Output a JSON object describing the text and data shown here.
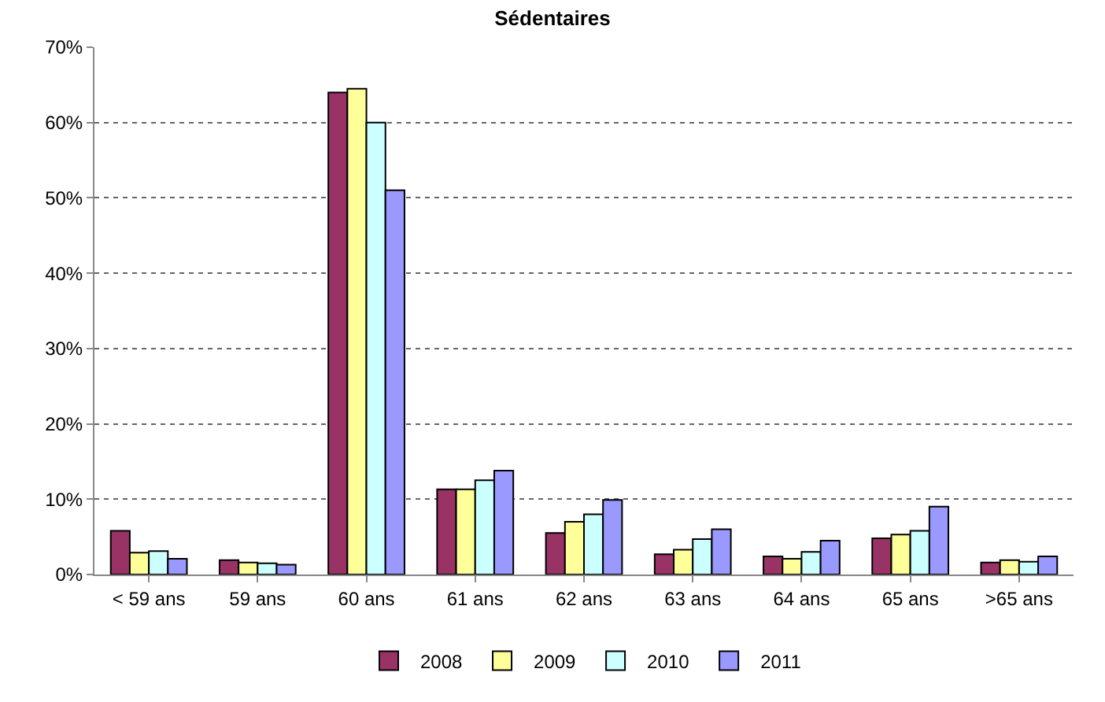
{
  "chart_data": {
    "type": "bar",
    "title": "Sédentaires",
    "categories": [
      "< 59 ans",
      "59 ans",
      "60 ans",
      "61 ans",
      "62 ans",
      "63 ans",
      "64 ans",
      "65 ans",
      ">65 ans"
    ],
    "series": [
      {
        "name": "2008",
        "color": "#993366",
        "values": [
          5.8,
          1.9,
          64,
          11.3,
          5.5,
          2.7,
          2.4,
          4.8,
          1.6
        ]
      },
      {
        "name": "2009",
        "color": "#ffff99",
        "values": [
          2.9,
          1.6,
          64.5,
          11.3,
          7,
          3.3,
          2.1,
          5.3,
          1.9
        ]
      },
      {
        "name": "2010",
        "color": "#ccffff",
        "values": [
          3.1,
          1.5,
          60,
          12.5,
          8,
          4.7,
          3,
          5.8,
          1.7
        ]
      },
      {
        "name": "2011",
        "color": "#9999ff",
        "values": [
          2.1,
          1.3,
          51,
          13.8,
          9.9,
          6,
          4.5,
          9,
          2.4
        ]
      }
    ],
    "ylim": [
      0,
      70
    ],
    "yticks": [
      {
        "value": 0,
        "label": "0%"
      },
      {
        "value": 10,
        "label": "10%"
      },
      {
        "value": 20,
        "label": "20%"
      },
      {
        "value": 30,
        "label": "30%"
      },
      {
        "value": 40,
        "label": "40%"
      },
      {
        "value": 50,
        "label": "50%"
      },
      {
        "value": 60,
        "label": "60%"
      },
      {
        "value": 70,
        "label": "70%"
      }
    ],
    "grid": "y",
    "legend": "bottom"
  }
}
